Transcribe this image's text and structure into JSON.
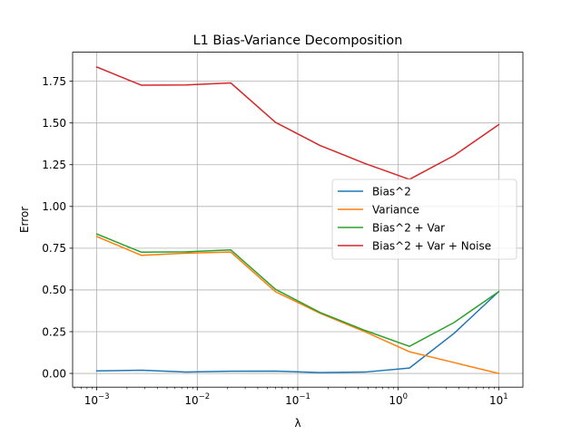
{
  "chart_data": {
    "type": "line",
    "title": "L1 Bias-Variance Decomposition",
    "xlabel": "λ",
    "ylabel": "Error",
    "x_scale": "log",
    "xlim": [
      0.000575,
      17.4
    ],
    "ylim": [
      -0.0823,
      1.9239
    ],
    "grid": true,
    "legend_position": "center-right",
    "x": [
      0.001,
      0.002783,
      0.007743,
      0.02154,
      0.05995,
      0.1668,
      0.4642,
      1.292,
      3.594,
      10.0
    ],
    "xticks": [
      {
        "value": 0.001,
        "base": "10",
        "exp": "−3"
      },
      {
        "value": 0.01,
        "base": "10",
        "exp": "−2"
      },
      {
        "value": 0.1,
        "base": "10",
        "exp": "−1"
      },
      {
        "value": 1,
        "base": "10",
        "exp": "0"
      },
      {
        "value": 10,
        "base": "10",
        "exp": "1"
      }
    ],
    "yticks": [
      {
        "value": 0.0,
        "label": "0.00"
      },
      {
        "value": 0.25,
        "label": "0.25"
      },
      {
        "value": 0.5,
        "label": "0.50"
      },
      {
        "value": 0.75,
        "label": "0.75"
      },
      {
        "value": 1.0,
        "label": "1.00"
      },
      {
        "value": 1.25,
        "label": "1.25"
      },
      {
        "value": 1.5,
        "label": "1.50"
      },
      {
        "value": 1.75,
        "label": "1.75"
      }
    ],
    "series": [
      {
        "name": "Bias^2",
        "color": "#1f77b4",
        "values": [
          0.015,
          0.019,
          0.008,
          0.013,
          0.014,
          0.005,
          0.008,
          0.032,
          0.24,
          0.49
        ]
      },
      {
        "name": "Variance",
        "color": "#ff7f0e",
        "values": [
          0.82,
          0.707,
          0.72,
          0.727,
          0.49,
          0.36,
          0.25,
          0.13,
          0.065,
          0.0
        ]
      },
      {
        "name": "Bias^2 + Var",
        "color": "#2ca02c",
        "values": [
          0.835,
          0.726,
          0.728,
          0.74,
          0.504,
          0.365,
          0.258,
          0.162,
          0.305,
          0.49
        ]
      },
      {
        "name": "Bias^2 + Var + Noise",
        "color": "#d62728",
        "values": [
          1.835,
          1.726,
          1.728,
          1.74,
          1.504,
          1.365,
          1.258,
          1.162,
          1.305,
          1.49
        ]
      }
    ]
  }
}
